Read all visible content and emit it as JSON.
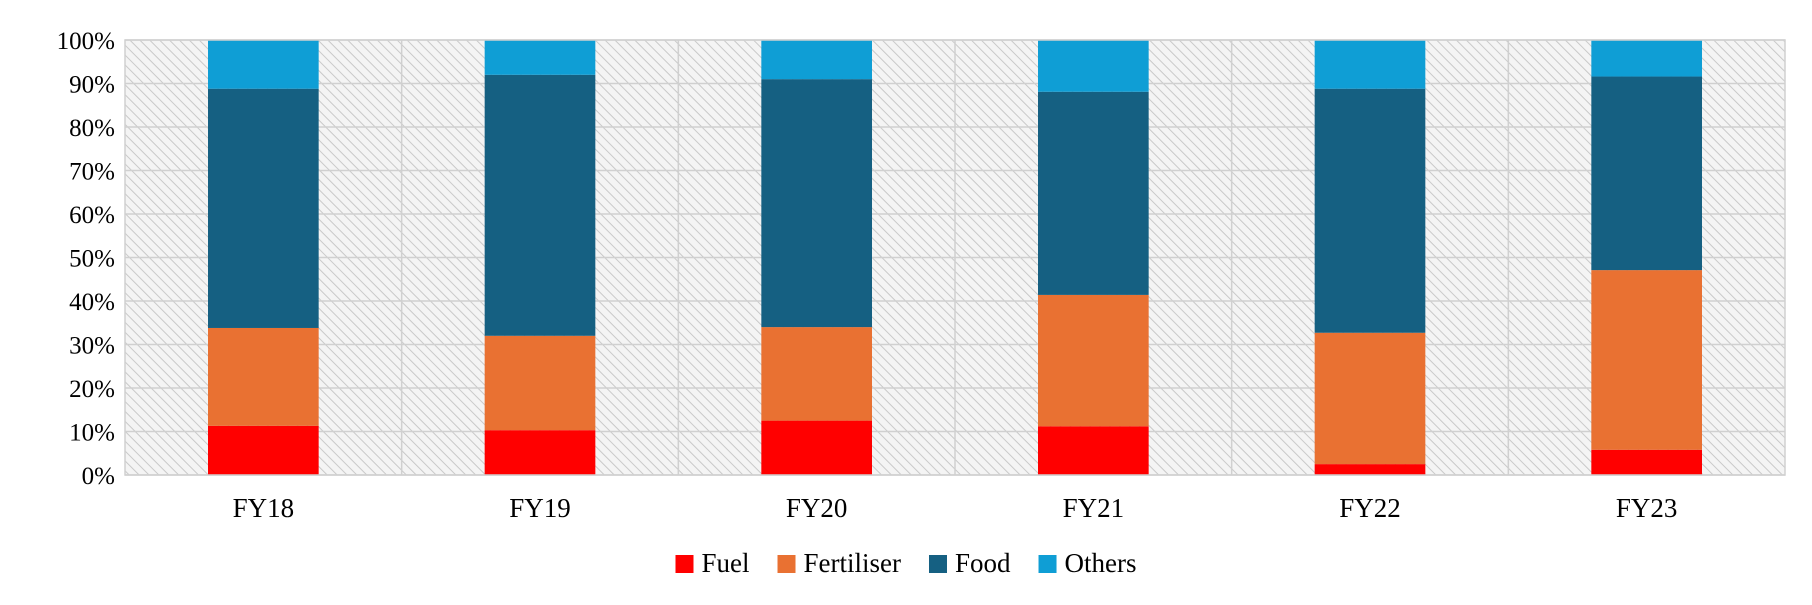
{
  "chart_data": {
    "type": "bar",
    "stacked": true,
    "percent": true,
    "categories": [
      "FY18",
      "FY19",
      "FY20",
      "FY21",
      "FY22",
      "FY23"
    ],
    "series": [
      {
        "name": "Fuel",
        "color": "#ff0000",
        "values": [
          11.3,
          10.3,
          12.5,
          11.2,
          2.5,
          5.8
        ]
      },
      {
        "name": "Fertiliser",
        "color": "#e97132",
        "values": [
          22.5,
          21.7,
          21.5,
          30.2,
          30.2,
          41.3
        ]
      },
      {
        "name": "Food",
        "color": "#156082",
        "values": [
          55.0,
          60.0,
          57.0,
          46.7,
          56.1,
          44.5
        ]
      },
      {
        "name": "Others",
        "color": "#0f9ed5",
        "values": [
          11.2,
          8.0,
          9.0,
          11.9,
          11.2,
          8.4
        ]
      }
    ],
    "yticks": [
      "0%",
      "10%",
      "20%",
      "30%",
      "40%",
      "50%",
      "60%",
      "70%",
      "80%",
      "90%",
      "100%"
    ],
    "ylim": [
      0,
      100
    ],
    "grid": true,
    "plot_background": "hatched light gray",
    "legend_position": "bottom"
  }
}
